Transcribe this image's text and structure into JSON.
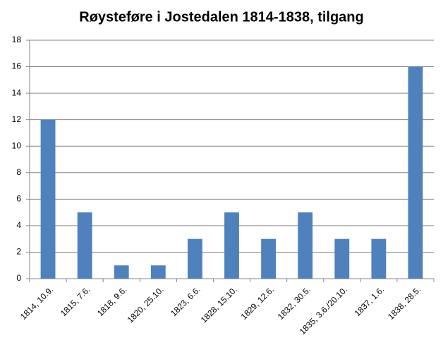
{
  "chart_data": {
    "type": "bar",
    "title": "Røysteføre i Jostedalen 1814-1838, tilgang",
    "categories": [
      "1814, 10.9.",
      "1815, 7.6.",
      "1818, 9.6.",
      "1820, 25.10.",
      "1823, 6.6.",
      "1828, 15.10.",
      "1829, 12.6.",
      "1832, 30.5.",
      "1835, 3.6./20.10.",
      "1837, 1.6.",
      "1838, 28.5."
    ],
    "values": [
      12,
      5,
      1,
      1,
      3,
      5,
      3,
      5,
      3,
      3,
      16
    ],
    "color": "#4f81bd",
    "ylim": [
      0,
      18
    ],
    "yticks": [
      0,
      2,
      4,
      6,
      8,
      10,
      12,
      14,
      16,
      18
    ],
    "grid": true
  }
}
